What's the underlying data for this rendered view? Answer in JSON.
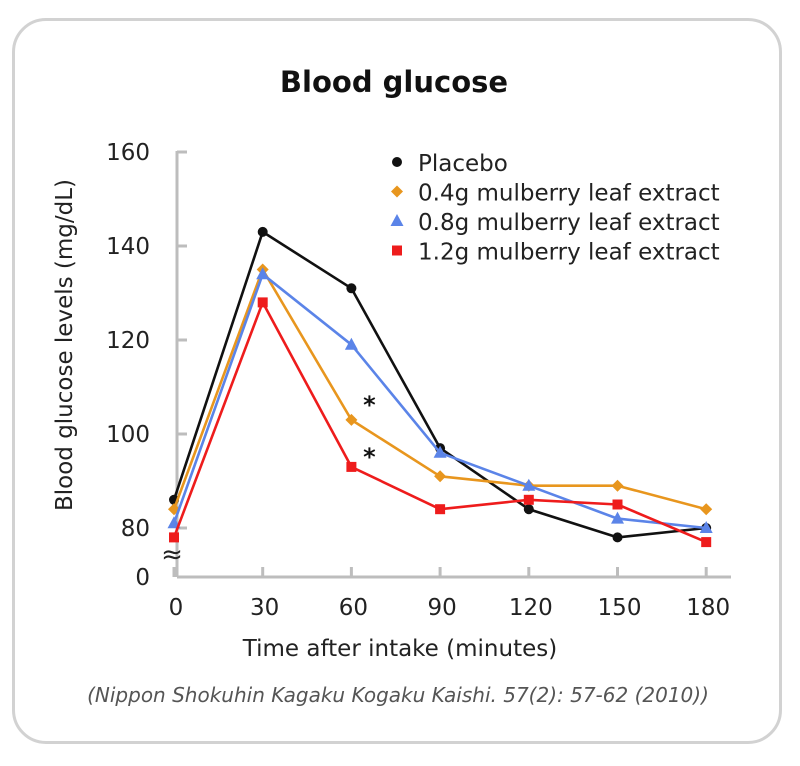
{
  "chart_data": {
    "type": "line",
    "title": "Blood glucose",
    "xlabel": "Time after intake (minutes)",
    "ylabel": "Blood glucose levels (mg/dL)",
    "x": [
      0,
      30,
      60,
      90,
      120,
      150,
      180
    ],
    "x_ticks": [
      "0",
      "30",
      "60",
      "90",
      "120",
      "150",
      "180"
    ],
    "y_ticks": [
      "0",
      "80",
      "100",
      "120",
      "140",
      "160"
    ],
    "ylim": [
      80,
      160
    ],
    "axis_break": true,
    "grid": false,
    "legend_position": "top-right",
    "series": [
      {
        "name": "Placebo",
        "values": [
          86,
          143,
          131,
          97,
          84,
          78,
          80
        ],
        "color": "#111111",
        "marker": "circle"
      },
      {
        "name": "0.4g mulberry leaf extract",
        "values": [
          84,
          135,
          103,
          91,
          89,
          89,
          84
        ],
        "color": "#e8961e",
        "marker": "diamond"
      },
      {
        "name": "0.8g mulberry leaf extract",
        "values": [
          81,
          134,
          119,
          96,
          89,
          82,
          80
        ],
        "color": "#5b84e8",
        "marker": "triangle"
      },
      {
        "name": "1.2g mulberry leaf extract",
        "values": [
          78,
          128,
          93,
          84,
          86,
          85,
          77
        ],
        "color": "#ee1c1c",
        "marker": "square"
      }
    ],
    "annotations": [
      {
        "text": "*",
        "x": 60,
        "y": 107
      },
      {
        "text": "*",
        "x": 60,
        "y": 96
      }
    ]
  },
  "source": "(Nippon Shokuhin Kagaku Kogaku Kaishi. 57(2): 57-62 (2010))",
  "axis_break_symbol": "≈"
}
